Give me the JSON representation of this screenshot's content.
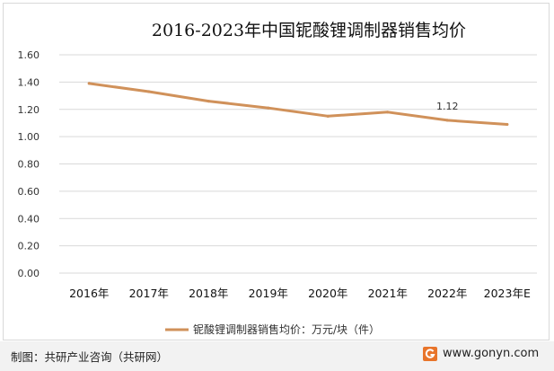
{
  "chart_data": {
    "type": "line",
    "title": "2016-2023年中国铌酸锂调制器销售均价",
    "categories": [
      "2016年",
      "2017年",
      "2018年",
      "2019年",
      "2020年",
      "2021年",
      "2022年",
      "2023年E"
    ],
    "series": [
      {
        "name": "铌酸锂调制器销售均价：万元/块（件）",
        "values": [
          1.39,
          1.33,
          1.26,
          1.21,
          1.15,
          1.18,
          1.12,
          1.09
        ],
        "color": "#d0915a"
      }
    ],
    "data_labels": [
      {
        "index": 6,
        "text": "1.12"
      }
    ],
    "yticks": [
      "0.00",
      "0.20",
      "0.40",
      "0.60",
      "0.80",
      "1.00",
      "1.20",
      "1.40",
      "1.60"
    ],
    "ylim": [
      0,
      1.6
    ],
    "grid": true,
    "legend": "bottom"
  },
  "footer": {
    "source": "制图：共研产业咨询（共研网）",
    "site": "www.gonyn.com",
    "logo_icon": "gonyn-logo-icon"
  }
}
